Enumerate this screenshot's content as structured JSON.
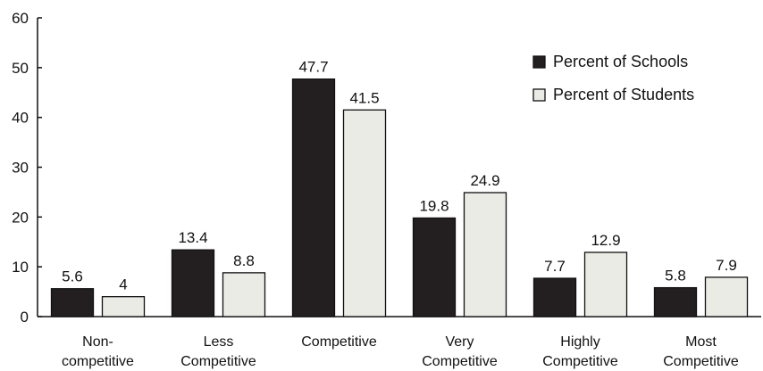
{
  "colors": {
    "schools": "#231f20",
    "students": "#ebebe6",
    "axis": "#111111"
  },
  "chart_data": {
    "type": "bar",
    "categories": [
      [
        "Non-",
        "competitive"
      ],
      [
        "Less",
        "Competitive"
      ],
      [
        "Competitive"
      ],
      [
        "Very",
        "Competitive"
      ],
      [
        "Highly",
        "Competitive"
      ],
      [
        "Most",
        "Competitive"
      ]
    ],
    "series": [
      {
        "name": "Percent of Schools",
        "values": [
          5.6,
          13.4,
          47.7,
          19.8,
          7.7,
          5.8
        ],
        "labels": [
          "5.6",
          "13.4",
          "47.7",
          "19.8",
          "7.7",
          "5.8"
        ]
      },
      {
        "name": "Percent of Students",
        "values": [
          4,
          8.8,
          41.5,
          24.9,
          12.9,
          7.9
        ],
        "labels": [
          "4",
          "8.8",
          "41.5",
          "24.9",
          "12.9",
          "7.9"
        ]
      }
    ],
    "ylim": [
      0,
      60
    ],
    "yticks": [
      "0",
      "10",
      "20",
      "30",
      "40",
      "50",
      "60"
    ],
    "grid": false,
    "legend": "top-right"
  }
}
